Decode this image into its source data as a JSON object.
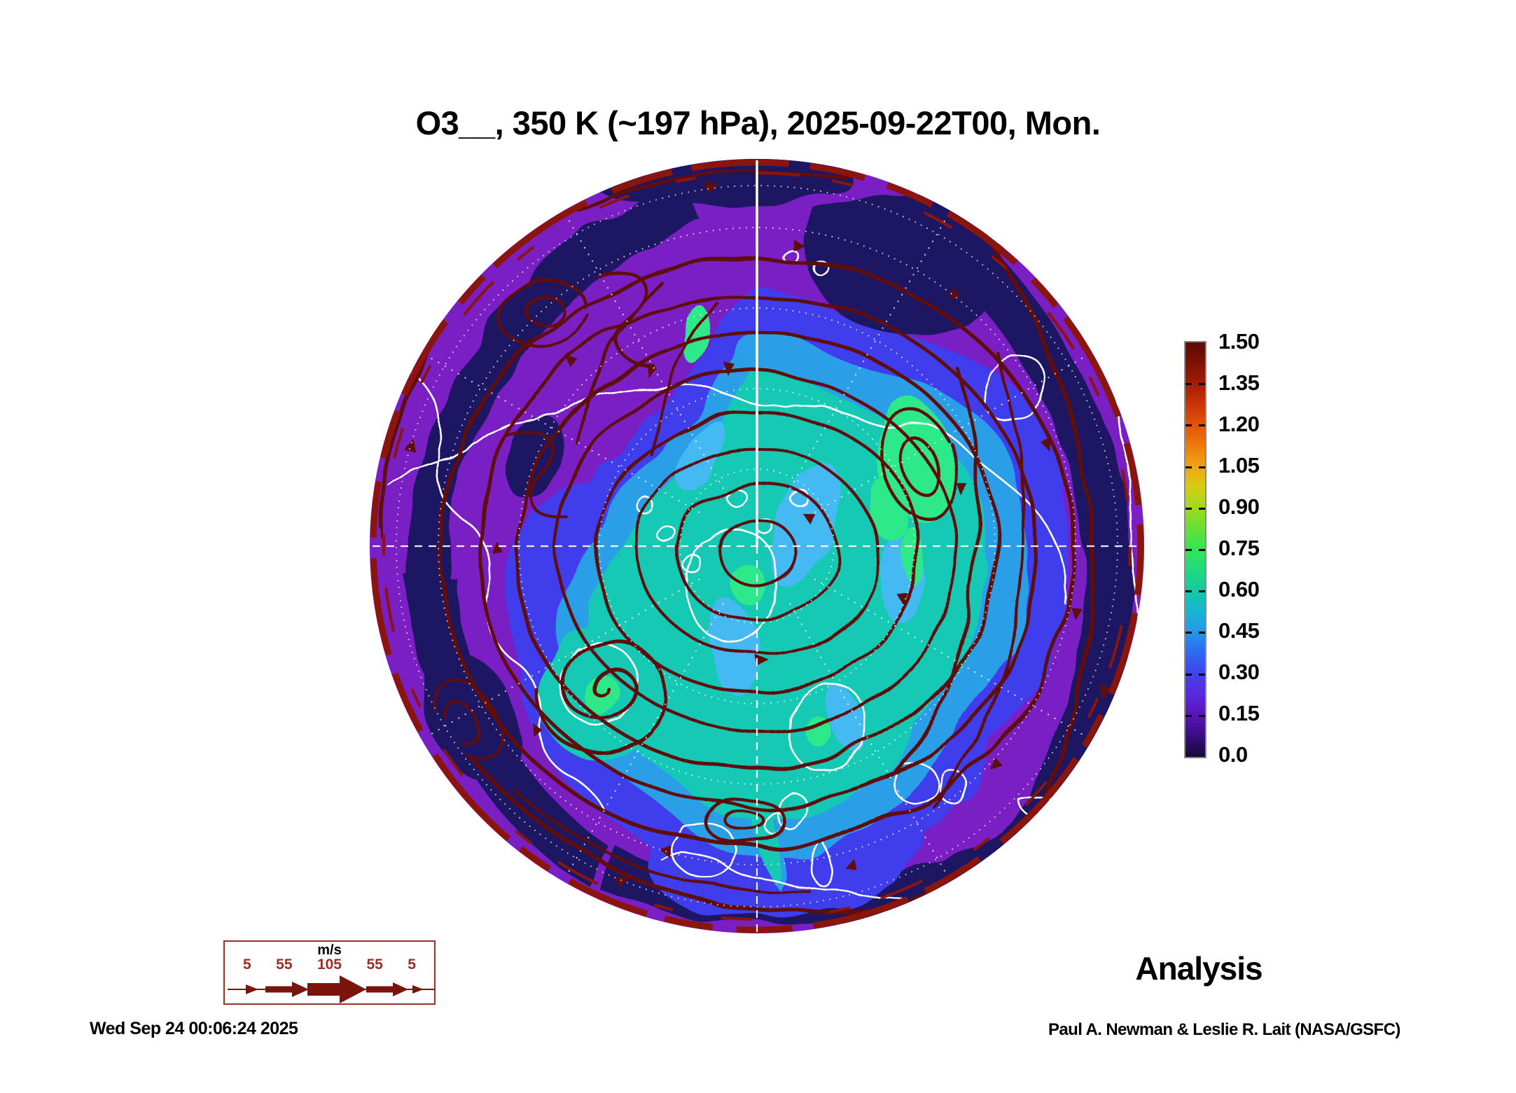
{
  "title": "O3__, 350 K (~197 hPa), 2025-09-22T00, Mon.",
  "analysis_label": "Analysis",
  "footer": {
    "generated": "Wed Sep 24 00:06:24 2025",
    "credit": "Paul A. Newman & Leslie R. Lait (NASA/GSFC)"
  },
  "colorbar": {
    "labels": [
      "1.50",
      "1.35",
      "1.20",
      "1.05",
      "0.90",
      "0.75",
      "0.60",
      "0.45",
      "0.30",
      "0.15",
      "0.0"
    ],
    "range": [
      0.0,
      1.5
    ],
    "stops": [
      {
        "value": 0.0,
        "color": "#180833"
      },
      {
        "value": 0.08,
        "color": "#3b0d86"
      },
      {
        "value": 0.15,
        "color": "#5a13b8"
      },
      {
        "value": 0.23,
        "color": "#5a2ae0"
      },
      {
        "value": 0.3,
        "color": "#4141ee"
      },
      {
        "value": 0.38,
        "color": "#2f6af2"
      },
      {
        "value": 0.45,
        "color": "#2596ea"
      },
      {
        "value": 0.53,
        "color": "#19b6d2"
      },
      {
        "value": 0.6,
        "color": "#14c9a6"
      },
      {
        "value": 0.68,
        "color": "#20db7c"
      },
      {
        "value": 0.75,
        "color": "#31e655"
      },
      {
        "value": 0.83,
        "color": "#66e131"
      },
      {
        "value": 0.9,
        "color": "#9eda20"
      },
      {
        "value": 0.98,
        "color": "#d8cc15"
      },
      {
        "value": 1.05,
        "color": "#f1a511"
      },
      {
        "value": 1.13,
        "color": "#ee790c"
      },
      {
        "value": 1.2,
        "color": "#e25509"
      },
      {
        "value": 1.28,
        "color": "#c93407"
      },
      {
        "value": 1.35,
        "color": "#a31d05"
      },
      {
        "value": 1.43,
        "color": "#7c1004"
      },
      {
        "value": 1.5,
        "color": "#5c0a04"
      }
    ]
  },
  "wind_legend": {
    "unit_label": "m/s",
    "values": [
      "5",
      "55",
      "105",
      "55",
      "5"
    ]
  },
  "colors": {
    "map_purple": "#7a1fc4",
    "map_navy": "#1e1664",
    "map_blue": "#3f3cec",
    "map_cyan": "#2b9fe8",
    "map_cyan_light": "#44b9f2",
    "map_teal": "#17c9b4",
    "map_green": "#2ee98a",
    "streamline_maroon": "#5e0f08",
    "rim_red": "#8c150b",
    "coast_white": "#ffffff",
    "legend_red": "#9c2f23",
    "legend_maroon": "#7a140d",
    "colorbar_border": "#8a8a8a"
  },
  "chart_data": {
    "type": "heatmap",
    "title": "O3__, 350 K (~197 hPa), 2025-09-22T00, Mon.",
    "field": "O3",
    "level": "350 K (~197 hPa)",
    "valid_time": "2025-09-22T00",
    "weekday": "Mon.",
    "projection": "north polar stereographic",
    "overlays": [
      "wind streamlines (dark red, arrowed)",
      "coastlines (white)",
      "lat/lon graticule (white dotted)"
    ],
    "colorbar_ticks": [
      1.5,
      1.35,
      1.2,
      1.05,
      0.9,
      0.75,
      0.6,
      0.45,
      0.3,
      0.15,
      0.0
    ],
    "colorbar_range": [
      0.0,
      1.5
    ],
    "colorbar_position": "right",
    "wind_scale_units": "m/s",
    "wind_scale_values": [
      5,
      55,
      105,
      55,
      5
    ],
    "annotations": [
      "Analysis",
      "Wed Sep 24 00:06:24 2025",
      "Paul A. Newman & Leslie R. Lait (NASA/GSFC)"
    ],
    "field_description": "Low ozone values (teal/green 0.3-0.6) over the polar cap, purple/violet (0.05-0.2) mid-latitude ring, dark navy minima patches, strong circumpolar jet hugging the map rim"
  }
}
